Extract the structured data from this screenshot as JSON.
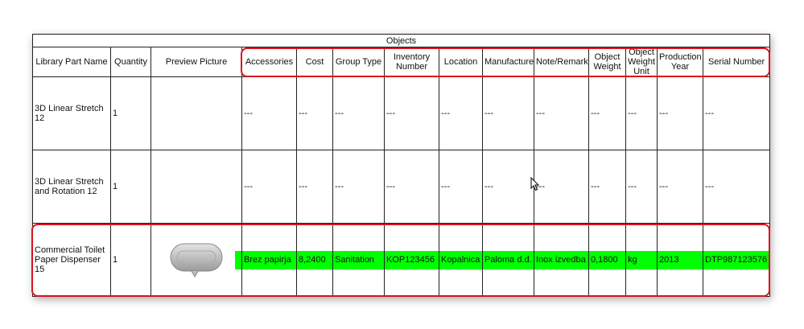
{
  "table": {
    "group_header": "Objects",
    "columns": [
      "Library Part Name",
      "Quantity",
      "Preview Picture",
      "Accessories",
      "Cost",
      "Group Type",
      "Inventory Number",
      "Location",
      "Manufacturer",
      "Note/Remarks",
      "Object Weight",
      "Object Weight Unit",
      "Production Year",
      "Serial Number"
    ],
    "rows": [
      {
        "name": "3D Linear Stretch 12",
        "quantity": "1",
        "preview": "",
        "values": [
          "---",
          "---",
          "---",
          "---",
          "---",
          "---",
          "---",
          "---",
          "---",
          "---",
          "---"
        ]
      },
      {
        "name": "3D Linear Stretch and Rotation 12",
        "quantity": "1",
        "preview": "",
        "values": [
          "---",
          "---",
          "---",
          "---",
          "---",
          "---",
          "---",
          "---",
          "---",
          "---",
          "---"
        ]
      },
      {
        "name": "Commercial Toilet Paper Dispenser 15",
        "quantity": "1",
        "preview": "toilet-paper-dispenser-image",
        "values": [
          "Brez papirja",
          "8,2400",
          "Sanitation",
          "KOP123456",
          "Kopalnica",
          "Paloma d.d.",
          "Inox izvedba",
          "0,1800",
          "kg",
          "2013",
          "DTP987123576"
        ]
      }
    ]
  },
  "colors": {
    "highlight_row": "#00ff00",
    "annotation": "#d9141e"
  }
}
